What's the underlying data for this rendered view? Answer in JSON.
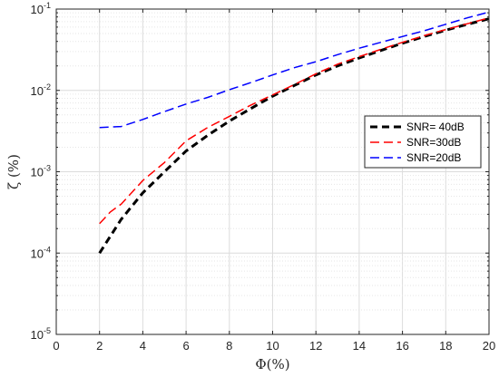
{
  "chart_data": {
    "type": "line",
    "xlabel": "Φ(%)",
    "ylabel": "ζ (%)",
    "xlim": [
      0,
      20
    ],
    "ylim": [
      1e-05,
      0.1
    ],
    "yscale": "log",
    "grid": true,
    "legend_position": "right",
    "x_ticks": [
      0,
      2,
      4,
      6,
      8,
      10,
      12,
      14,
      16,
      18,
      20
    ],
    "y_tick_exponents": [
      -5,
      -4,
      -3,
      -2,
      -1
    ],
    "y_tick_base": "10",
    "series": [
      {
        "name": "SNR= 40dB",
        "color": "#000000",
        "dash": "bold-dashed",
        "x": [
          2,
          3,
          4,
          5,
          6,
          7,
          8,
          9,
          10,
          11,
          12,
          13,
          14,
          15,
          16,
          17,
          18,
          19,
          20
        ],
        "y": [
          0.0001,
          0.00026,
          0.00055,
          0.001,
          0.0018,
          0.0028,
          0.0042,
          0.006,
          0.0085,
          0.0115,
          0.0155,
          0.02,
          0.025,
          0.031,
          0.038,
          0.046,
          0.055,
          0.065,
          0.076
        ]
      },
      {
        "name": "SNR=30dB",
        "color": "#ff0000",
        "dash": "dashed",
        "x": [
          2,
          2.5,
          3,
          4,
          5,
          6,
          7,
          8,
          9,
          10,
          11,
          12,
          13,
          14,
          15,
          16,
          17,
          18,
          19,
          20
        ],
        "y": [
          0.00023,
          0.00032,
          0.0004,
          0.00078,
          0.0013,
          0.0024,
          0.0035,
          0.0048,
          0.0066,
          0.0088,
          0.0118,
          0.016,
          0.021,
          0.026,
          0.032,
          0.039,
          0.047,
          0.056,
          0.066,
          0.078
        ]
      },
      {
        "name": "SNR=20dB",
        "color": "#0000ff",
        "dash": "dashed",
        "x": [
          2,
          3,
          4,
          5,
          6,
          7,
          8,
          9,
          10,
          11,
          12,
          13,
          14,
          15,
          16,
          17,
          18,
          19,
          20
        ],
        "y": [
          0.0035,
          0.0036,
          0.0044,
          0.0055,
          0.0068,
          0.0082,
          0.0102,
          0.0125,
          0.0155,
          0.019,
          0.0225,
          0.0275,
          0.033,
          0.039,
          0.046,
          0.054,
          0.065,
          0.078,
          0.092
        ]
      }
    ]
  }
}
